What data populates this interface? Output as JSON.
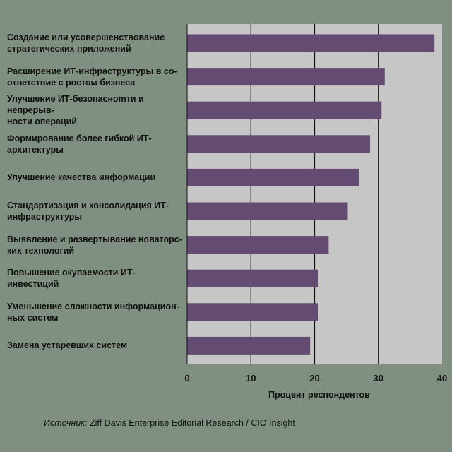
{
  "chart_data": {
    "type": "bar",
    "orientation": "horizontal",
    "categories": [
      "Создание или усовершенствование\nстратегических приложений",
      "Расширение ИТ-инфраструктуры в со-\nответствие с ростом бизнеса",
      "Улучшение ИТ-безопаснomти и непрерыв-\nности операций",
      "Формирование более гибкой ИТ-\nархитектуры",
      "Улучшение качества информации",
      "Стандартизация и консолидация ИТ-\nинфраструктуры",
      "Выявление и развертывание новаторс-\nких технологий",
      "Повышение окупаемости ИТ-инвестиций",
      "Уменьшение сложности информацион-\nных систем",
      "Замена устаревших систем"
    ],
    "values": [
      38.8,
      31,
      30.5,
      28.7,
      27,
      25.2,
      22.2,
      20.5,
      20.5,
      19.3
    ],
    "xlabel": "Процент респондентов",
    "xlim": [
      0,
      40
    ],
    "xticks": [
      "0",
      "10",
      "20",
      "30",
      "40"
    ],
    "grid": true,
    "colors": {
      "background": "#7f9081",
      "plot_area": "#c6c6c6",
      "bar": "#644b72",
      "gridline": "#111111",
      "text": "#101010"
    }
  },
  "source": {
    "prefix": "Источник:",
    "text": " Ziff Davis Enterprise Editorial Research / CIO Insight"
  }
}
